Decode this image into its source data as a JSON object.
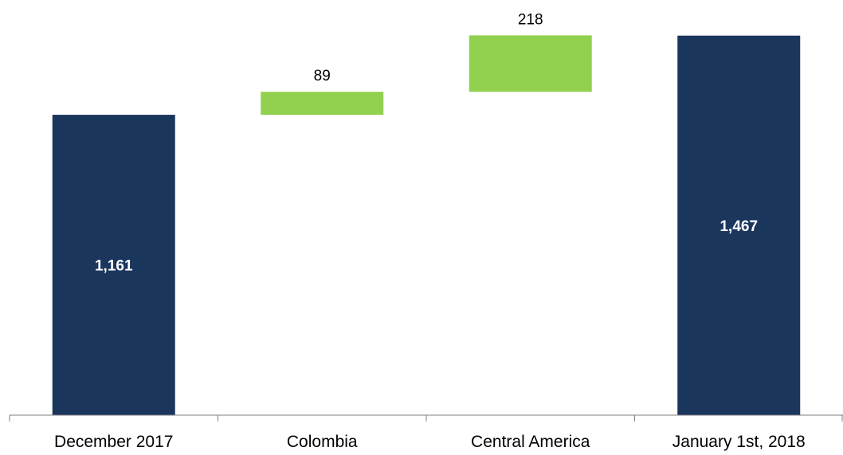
{
  "chart_data": {
    "type": "bar",
    "subtype": "waterfall",
    "title": "",
    "xlabel": "",
    "ylabel": "",
    "categories": [
      "December 2017",
      "Colombia",
      "Central America",
      "January 1st, 2018"
    ],
    "values": [
      1161,
      89,
      218,
      1467
    ],
    "bar_kind": [
      "total",
      "increase",
      "increase",
      "total"
    ],
    "value_labels": [
      "1,161",
      "89",
      "218",
      "1,467"
    ],
    "ylim": [
      0,
      1500
    ],
    "grid": false,
    "legend": "none",
    "colors": {
      "total": "#1b365d",
      "increase": "#92d050",
      "axis": "#7f7f7f"
    }
  }
}
